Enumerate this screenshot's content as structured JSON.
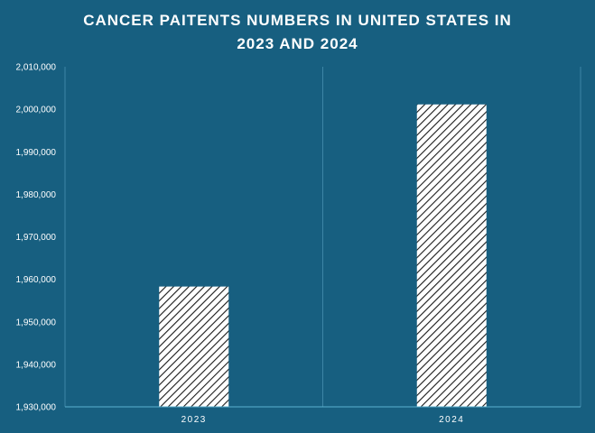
{
  "chart_data": {
    "type": "bar",
    "title_line1": "CANCER PAITENTS NUMBERS IN UNITED STATES IN",
    "title_line2": "2023 AND 2024",
    "categories": [
      "2023",
      "2024"
    ],
    "values": [
      1958300,
      2001140
    ],
    "ylim": [
      1930000,
      2010000
    ],
    "yticks": [
      1930000,
      1940000,
      1950000,
      1960000,
      1970000,
      1980000,
      1990000,
      2000000,
      2010000
    ],
    "ytick_labels": [
      "1,930,000",
      "1,940,000",
      "1,950,000",
      "1,960,000",
      "1,970,000",
      "1,980,000",
      "1,990,000",
      "2,000,000",
      "2,010,000"
    ],
    "grid": "vertical-separators",
    "bar_fill": "diagonal-hatch",
    "colors": {
      "background": "#175f80",
      "bar_fill": "#ffffff",
      "bar_hatch": "#1a1a1a",
      "axis": "#5bb0cf",
      "grid": "#3d86a6",
      "text": "#ffffff"
    }
  }
}
